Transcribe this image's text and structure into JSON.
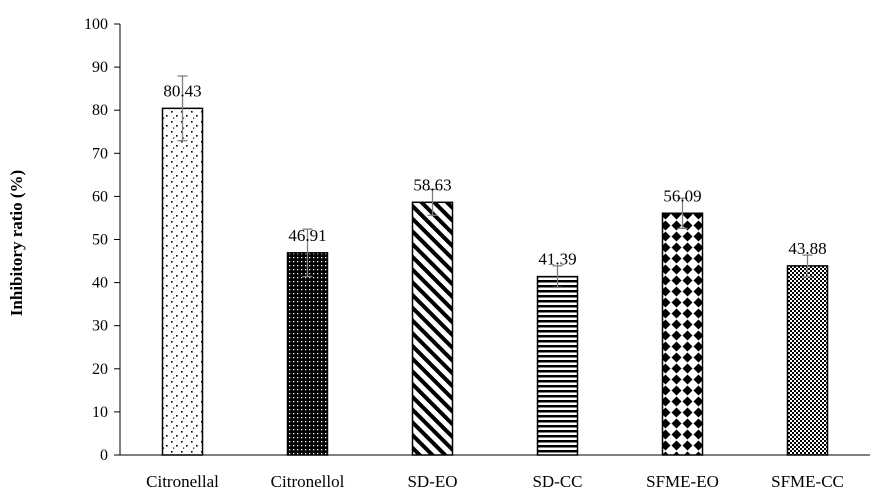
{
  "chart_data": {
    "type": "bar",
    "title": "",
    "xlabel": "",
    "ylabel": "Inhibitory ratio (%)",
    "ylim": [
      0,
      100
    ],
    "yticks": [
      0,
      10,
      20,
      30,
      40,
      50,
      60,
      70,
      80,
      90,
      100
    ],
    "grid": false,
    "legend": "none",
    "categories": [
      "Citronellal",
      "Citronellol",
      "SD-EO",
      "SD-CC",
      "SFME-EO",
      "SFME-CC"
    ],
    "values": [
      80.43,
      46.91,
      58.63,
      41.39,
      56.09,
      43.88
    ],
    "value_labels": [
      "80.43",
      "46.91",
      "58.63",
      "41.39",
      "56.09",
      "43.88"
    ],
    "error": [
      7.5,
      5.5,
      3.0,
      2.5,
      3.5,
      2.5
    ],
    "patterns": [
      "sparse-dots",
      "dense-dots",
      "diagonal-stripes",
      "horizontal-stripes",
      "diamonds",
      "checker"
    ],
    "bar_outline_color": "#000000",
    "error_bar_color": "#7f7f7f"
  }
}
